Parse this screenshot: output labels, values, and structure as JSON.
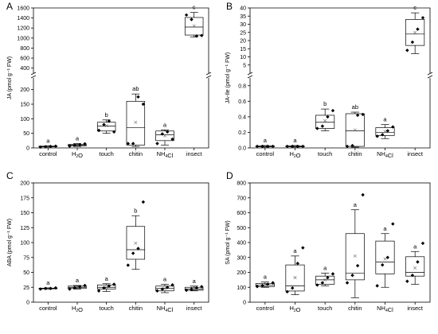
{
  "chart_data": [
    {
      "panel": "A",
      "type": "box",
      "ylabel": "JA (pmol g⁻¹ FW)",
      "categories": [
        "control",
        "H₂O",
        "touch",
        "chitin",
        "NH₄Cl",
        "insect"
      ],
      "broken_axis": true,
      "lower_range": [
        0,
        240
      ],
      "lower_ticks": [
        "0",
        "50",
        "100",
        "150",
        "200"
      ],
      "upper_range": [
        300,
        1600
      ],
      "upper_ticks": [
        "400",
        "600",
        "800",
        "1000",
        "1200",
        "1400",
        "1600"
      ],
      "boxes": [
        {
          "category": "control",
          "min": 3,
          "q1": 4,
          "median": 5,
          "q3": 6,
          "max": 7,
          "mean": 5,
          "points": [
            3,
            4,
            5,
            6
          ],
          "letter": "a"
        },
        {
          "category": "H₂O",
          "min": 5,
          "q1": 7,
          "median": 10,
          "q3": 12,
          "max": 15,
          "mean": 10,
          "points": [
            6,
            9,
            11,
            14
          ],
          "letter": "a"
        },
        {
          "category": "touch",
          "min": 50,
          "q1": 58,
          "median": 75,
          "q3": 88,
          "max": 96,
          "mean": 76,
          "points": [
            60,
            80,
            92,
            55
          ],
          "letter": "b"
        },
        {
          "category": "chitin",
          "min": 5,
          "q1": 10,
          "median": 70,
          "q3": 160,
          "max": 185,
          "mean": 88,
          "points": [
            15,
            15,
            175,
            150
          ],
          "letter": "ab"
        },
        {
          "category": "NH₄Cl",
          "min": 10,
          "q1": 25,
          "median": 45,
          "q3": 58,
          "max": 62,
          "mean": 42,
          "points": [
            15,
            48,
            55,
            30
          ],
          "letter": "a"
        },
        {
          "category": "insect",
          "min": 1020,
          "q1": 1060,
          "median": 1220,
          "q3": 1410,
          "max": 1510,
          "mean": 1240,
          "points": [
            1460,
            1370,
            1040,
            1050
          ],
          "letter": "c",
          "panel_range": "upper"
        }
      ]
    },
    {
      "panel": "B",
      "type": "box",
      "ylabel": "JA-Ile (pmol g⁻¹ FW)",
      "categories": [
        "control",
        "H₂O",
        "touch",
        "chitin",
        "NH₄Cl",
        "insect"
      ],
      "broken_axis": true,
      "lower_range": [
        0,
        0.9
      ],
      "lower_ticks": [
        "0.0",
        "0.2",
        "0.4",
        "0.6",
        "0.8"
      ],
      "upper_range": [
        0,
        40
      ],
      "upper_ticks": [
        "5",
        "10",
        "15",
        "20",
        "25",
        "30",
        "35",
        "40"
      ],
      "boxes": [
        {
          "category": "control",
          "min": 0.01,
          "q1": 0.015,
          "median": 0.02,
          "q3": 0.025,
          "max": 0.03,
          "mean": 0.02,
          "points": [
            0.02,
            0.02,
            0.02,
            0.02
          ],
          "letter": "a"
        },
        {
          "category": "H₂O",
          "min": 0.01,
          "q1": 0.015,
          "median": 0.02,
          "q3": 0.025,
          "max": 0.03,
          "mean": 0.02,
          "points": [
            0.02,
            0.02,
            0.02,
            0.02
          ],
          "letter": "a"
        },
        {
          "category": "touch",
          "min": 0.22,
          "q1": 0.25,
          "median": 0.33,
          "q3": 0.42,
          "max": 0.5,
          "mean": 0.35,
          "points": [
            0.25,
            0.28,
            0.4,
            0.48
          ],
          "letter": "b"
        },
        {
          "category": "chitin",
          "min": 0.01,
          "q1": 0.02,
          "median": 0.22,
          "q3": 0.44,
          "max": 0.46,
          "mean": 0.23,
          "points": [
            0.02,
            0.03,
            0.42,
            0.43
          ],
          "letter": "ab"
        },
        {
          "category": "NH₄Cl",
          "min": 0.12,
          "q1": 0.16,
          "median": 0.2,
          "q3": 0.26,
          "max": 0.3,
          "mean": 0.21,
          "points": [
            0.15,
            0.17,
            0.22,
            0.27
          ],
          "letter": "a"
        },
        {
          "category": "insect",
          "min": 12,
          "q1": 17,
          "median": 24,
          "q3": 33,
          "max": 37,
          "mean": 25,
          "points": [
            14,
            19,
            27,
            34
          ],
          "letter": "c",
          "panel_range": "upper"
        }
      ]
    },
    {
      "panel": "C",
      "type": "box",
      "ylabel": "ABA (pmol g⁻¹ FW)",
      "categories": [
        "control",
        "H₂O",
        "touch",
        "chitin",
        "NH₄Cl",
        "insect"
      ],
      "ylim": [
        0,
        200
      ],
      "ticks": [
        "0",
        "25",
        "50",
        "75",
        "100",
        "125",
        "150",
        "175",
        "200"
      ],
      "boxes": [
        {
          "category": "control",
          "min": 22,
          "q1": 22.5,
          "median": 23,
          "q3": 23.5,
          "max": 24,
          "mean": 23,
          "points": [
            22,
            23,
            23,
            24
          ],
          "letter": "a"
        },
        {
          "category": "H₂O",
          "min": 22,
          "q1": 23,
          "median": 25,
          "q3": 27,
          "max": 28,
          "mean": 25,
          "points": [
            22,
            24,
            26,
            28
          ],
          "letter": "a"
        },
        {
          "category": "touch",
          "min": 18,
          "q1": 22,
          "median": 25,
          "q3": 29,
          "max": 31,
          "mean": 25,
          "points": [
            19,
            24,
            27,
            30
          ],
          "letter": "a"
        },
        {
          "category": "chitin",
          "min": 55,
          "q1": 72,
          "median": 88,
          "q3": 127,
          "max": 145,
          "mean": 99,
          "points": [
            62,
            82,
            90,
            168
          ],
          "letter": "b"
        },
        {
          "category": "NH₄Cl",
          "min": 16,
          "q1": 19,
          "median": 23,
          "q3": 27,
          "max": 30,
          "mean": 23,
          "points": [
            19,
            22,
            25,
            29
          ],
          "letter": "a"
        },
        {
          "category": "insect",
          "min": 19,
          "q1": 20,
          "median": 22,
          "q3": 25,
          "max": 27,
          "mean": 23,
          "points": [
            20,
            22,
            24,
            26
          ],
          "letter": "a"
        }
      ]
    },
    {
      "panel": "D",
      "type": "box",
      "ylabel": "SA (pmol g⁻¹ FW)",
      "categories": [
        "control",
        "H₂O",
        "touch",
        "chitin",
        "NH₄Cl",
        "insect"
      ],
      "ylim": [
        0,
        800
      ],
      "ticks": [
        "0",
        "100",
        "200",
        "300",
        "400",
        "500",
        "600",
        "700",
        "800"
      ],
      "boxes": [
        {
          "category": "control",
          "min": 100,
          "q1": 105,
          "median": 115,
          "q3": 125,
          "max": 135,
          "mean": 118,
          "points": [
            105,
            112,
            120,
            130
          ],
          "letter": "a"
        },
        {
          "category": "H₂O",
          "min": 50,
          "q1": 75,
          "median": 110,
          "q3": 250,
          "max": 310,
          "mean": 165,
          "points": [
            70,
            95,
            260,
            365
          ],
          "letter": "a"
        },
        {
          "category": "touch",
          "min": 110,
          "q1": 120,
          "median": 150,
          "q3": 175,
          "max": 195,
          "mean": 150,
          "points": [
            115,
            130,
            165,
            190
          ],
          "letter": "a"
        },
        {
          "category": "chitin",
          "min": 30,
          "q1": 150,
          "median": 195,
          "q3": 460,
          "max": 620,
          "mean": 310,
          "points": [
            130,
            180,
            245,
            720
          ],
          "letter": "a"
        },
        {
          "category": "NH₄Cl",
          "min": 100,
          "q1": 190,
          "median": 270,
          "q3": 410,
          "max": 460,
          "mean": 290,
          "points": [
            110,
            250,
            300,
            525
          ],
          "letter": "a"
        },
        {
          "category": "insect",
          "min": 120,
          "q1": 175,
          "median": 200,
          "q3": 305,
          "max": 340,
          "mean": 230,
          "points": [
            140,
            180,
            270,
            395
          ],
          "letter": "a"
        }
      ]
    }
  ]
}
